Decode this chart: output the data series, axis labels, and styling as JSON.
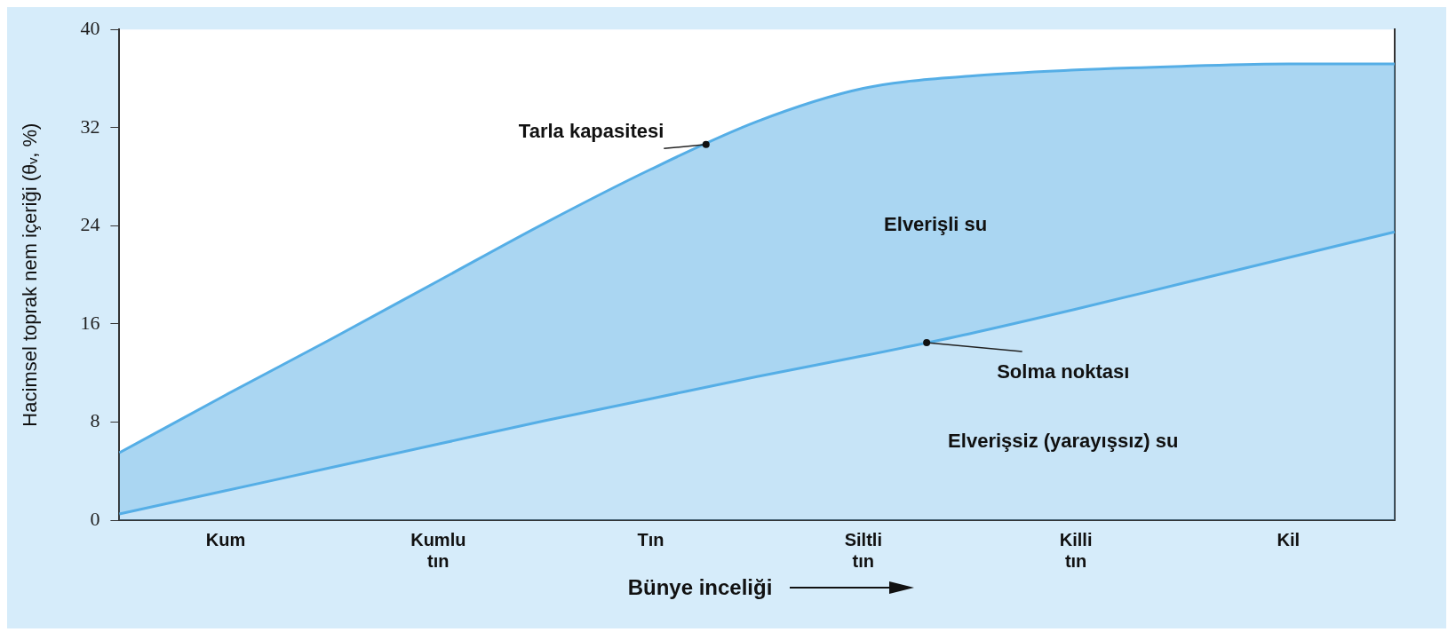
{
  "chart_data": {
    "type": "area",
    "xlabel": "Bünye inceliği",
    "ylabel": "Hacimsel toprak nem içeriği (θᵥ, %)",
    "categories": [
      null,
      "Kum",
      null,
      "Kumlu tın",
      null,
      "Tın",
      null,
      "Siltli tın",
      null,
      "Killi tın",
      null,
      "Kil",
      null
    ],
    "ylim": [
      0,
      40
    ],
    "yticks": [
      0,
      8,
      16,
      24,
      32,
      40
    ],
    "grid": false,
    "legend": false,
    "marker": "none",
    "series": [
      {
        "name": "Solma noktası",
        "color": "#55aee6",
        "values": [
          0.5,
          2.4,
          4.3,
          6.2,
          8.1,
          9.9,
          11.7,
          13.4,
          15.2,
          17.2,
          19.3,
          21.4,
          23.5
        ]
      },
      {
        "name": "Tarla kapasitesi",
        "color": "#55aee6",
        "values": [
          5.5,
          10.2,
          14.8,
          19.5,
          24.2,
          28.6,
          32.5,
          35.2,
          36.2,
          36.7,
          37,
          37.2,
          37.2
        ]
      }
    ],
    "annotations": [
      "Elverişli su",
      "Elverişsiz (yarayışsız) su"
    ]
  }
}
